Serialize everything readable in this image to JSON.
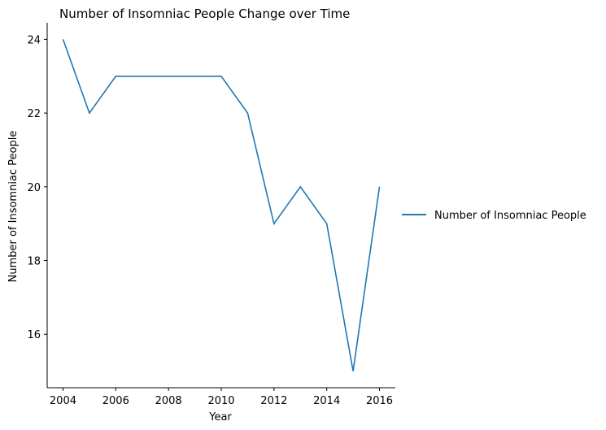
{
  "chart_data": {
    "type": "line",
    "title": "Number of Insomniac People Change over Time",
    "xlabel": "Year",
    "ylabel": "Number of Insomniac People",
    "x": [
      2004,
      2005,
      2006,
      2007,
      2008,
      2009,
      2010,
      2011,
      2012,
      2013,
      2014,
      2015,
      2016
    ],
    "series": [
      {
        "name": "Number of Insomniac People",
        "color": "#1f77b4",
        "values": [
          24,
          22,
          23,
          23,
          23,
          23,
          23,
          22,
          19,
          20,
          19,
          15,
          20
        ]
      }
    ],
    "xlim": [
      2003.4,
      2016.6
    ],
    "ylim": [
      14.55,
      24.45
    ],
    "xticks": [
      2004,
      2006,
      2008,
      2010,
      2012,
      2014,
      2016
    ],
    "yticks": [
      16,
      18,
      20,
      22,
      24
    ],
    "grid": false,
    "legend_position": "right"
  }
}
